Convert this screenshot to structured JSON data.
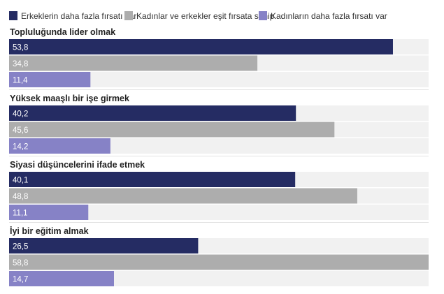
{
  "chart_data": {
    "type": "bar",
    "orientation": "horizontal",
    "grouped_by": "category",
    "legend": {
      "placement": "top-left",
      "entries": [
        {
          "name": "Erkeklerin daha fazla fırsatı var",
          "color": "#252c63"
        },
        {
          "name": "Kadınlar ve erkekler eşit fırsata sahip",
          "color": "#adadad"
        },
        {
          "name": "Kadınların daha fazla fırsatı var",
          "color": "#8682c6"
        }
      ]
    },
    "categories": [
      "Topluluğunda lider olmak",
      "Yüksek maaşlı bir işe girmek",
      "Siyasi düşüncelerini ifade etmek",
      "İyi bir eğitim almak"
    ],
    "series": [
      {
        "name": "Erkeklerin daha fazla fırsatı var",
        "color": "#252c63",
        "values": [
          53.8,
          40.2,
          40.1,
          26.5
        ],
        "labels": [
          "53,8",
          "40,2",
          "40,1",
          "26,5"
        ]
      },
      {
        "name": "Kadınlar ve erkekler eşit fırsata sahip",
        "color": "#adadad",
        "values": [
          34.8,
          45.6,
          48.8,
          58.8
        ],
        "labels": [
          "34,8",
          "45,6",
          "48,8",
          "58,8"
        ]
      },
      {
        "name": "Kadınların daha fazla fırsatı var",
        "color": "#8682c6",
        "values": [
          11.4,
          14.2,
          11.1,
          14.7
        ],
        "labels": [
          "11,4",
          "14,2",
          "11,1",
          "14,7"
        ]
      }
    ],
    "xlim": [
      0,
      58.8
    ],
    "track_color": "#f1f1f1",
    "grid": false
  }
}
